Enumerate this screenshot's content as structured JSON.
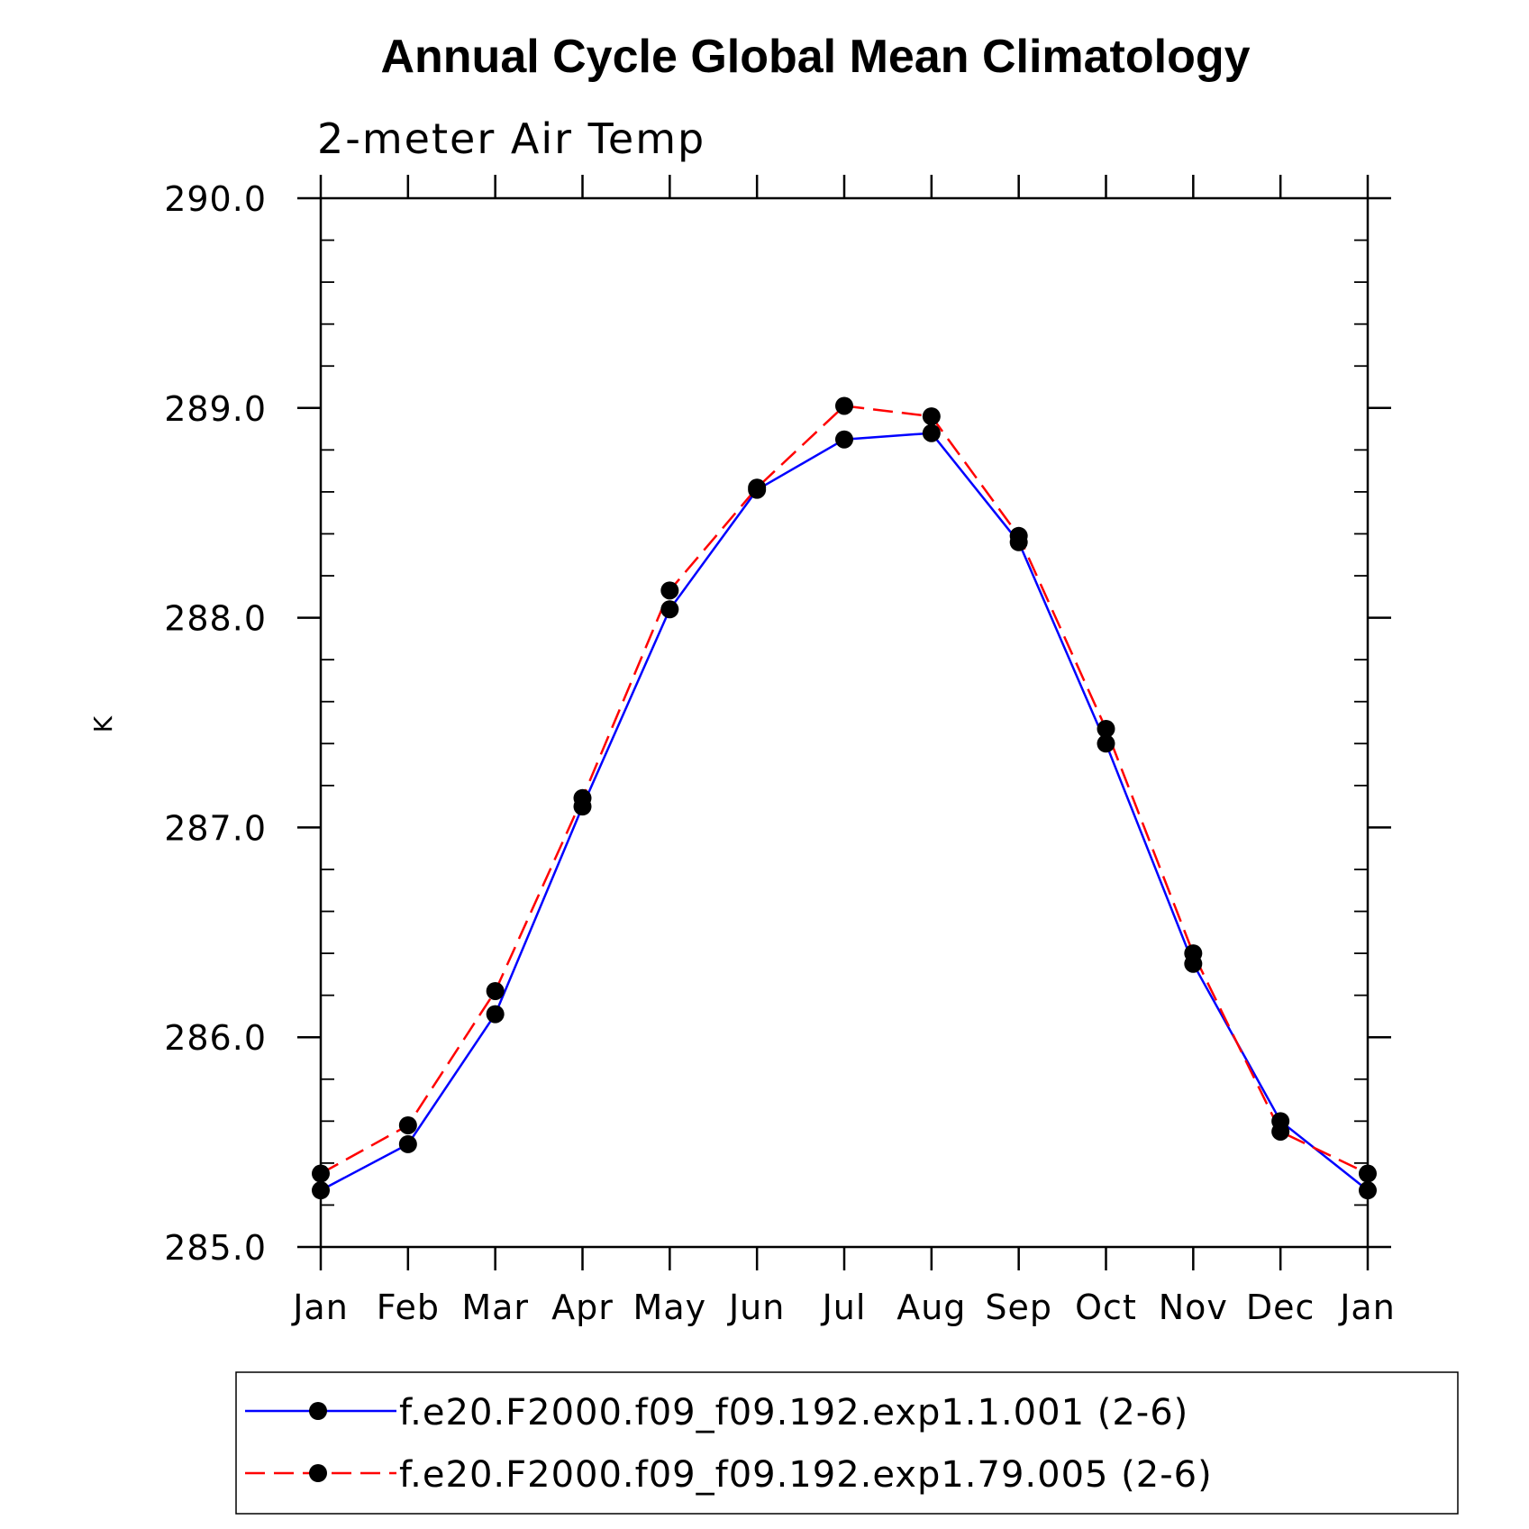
{
  "chart_data": {
    "type": "line",
    "title": "Annual Cycle Global Mean Climatology",
    "subtitle": "2-meter Air Temp",
    "ylabel": "K",
    "xlabel": "",
    "x_ticks": [
      "Jan",
      "Feb",
      "Mar",
      "Apr",
      "May",
      "Jun",
      "Jul",
      "Aug",
      "Sep",
      "Oct",
      "Nov",
      "Dec",
      "Jan"
    ],
    "y_ticks": [
      "285.0",
      "286.0",
      "287.0",
      "288.0",
      "289.0",
      "290.0"
    ],
    "ylim": [
      285.0,
      290.0
    ],
    "y_minor_step": 0.2,
    "grid": false,
    "legend_position": "bottom",
    "series": [
      {
        "name": "f.e20.F2000.f09_f09.192.exp1.1.001 (2-6)",
        "color": "#0000ff",
        "dash": "solid",
        "marker": "filled-circle",
        "values": [
          285.27,
          285.49,
          286.11,
          287.1,
          288.04,
          288.61,
          288.85,
          288.88,
          288.36,
          287.4,
          286.35,
          285.6,
          285.27
        ]
      },
      {
        "name": "f.e20.F2000.f09_f09.192.exp1.79.005 (2-6)",
        "color": "#ff0000",
        "dash": "dashed",
        "marker": "filled-circle",
        "values": [
          285.35,
          285.58,
          286.22,
          287.14,
          288.13,
          288.62,
          289.01,
          288.96,
          288.39,
          287.47,
          286.4,
          285.55,
          285.35
        ]
      }
    ]
  }
}
